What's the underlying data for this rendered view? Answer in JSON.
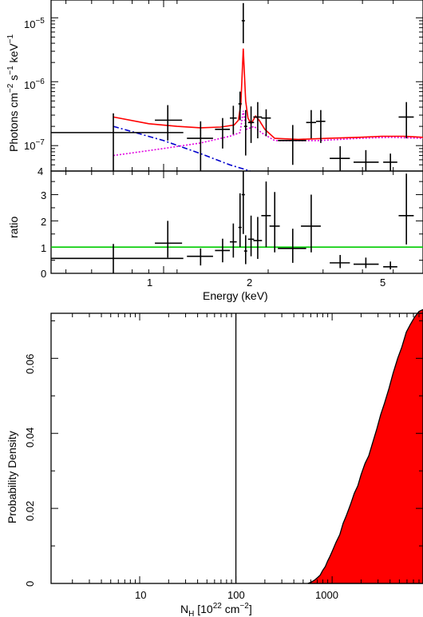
{
  "panels": {
    "spectrum": {
      "ylabel_main": "Photons cm",
      "ylabel_exp1": "−2",
      "ylabel_mid": " s",
      "ylabel_exp2": "−1",
      "ylabel_end": " keV",
      "ylabel_exp3": "−1",
      "yticks": [
        {
          "base": "10",
          "exp": "−5",
          "value": 1e-05
        },
        {
          "base": "10",
          "exp": "−6",
          "value": 1e-06
        },
        {
          "base": "10",
          "exp": "−7",
          "value": 1e-07
        }
      ],
      "ymin_label": "4"
    },
    "ratio": {
      "ylabel": "ratio",
      "yticks": [
        "0",
        "1",
        "2",
        "3"
      ],
      "xticks": [
        "1",
        "2",
        "5"
      ],
      "xlabel": "Energy (keV)"
    },
    "posterior": {
      "ylabel": "Probability Density",
      "yticks": [
        "0",
        "0.02",
        "0.04",
        "0.06"
      ],
      "xticks": [
        "10",
        "100",
        "1000"
      ],
      "xlabel_base": "N",
      "xlabel_sub": "H",
      "xlabel_rest": " [10",
      "xlabel_exp": "22",
      "xlabel_unit": " cm",
      "xlabel_exp2": "−2",
      "xlabel_close": "]"
    }
  },
  "colors": {
    "model_total": "#ff0000",
    "component_blue": "#0000cc",
    "component_magenta": "#e000e0",
    "unity_line": "#00cc00",
    "posterior_fill": "#ff0000",
    "axes": "#000000"
  },
  "chart_data": [
    {
      "type": "scatter",
      "description_panel": "spectrum",
      "xscale": "log",
      "yscale": "log",
      "xlim": [
        0.45,
        6.3
      ],
      "ylim": [
        4e-08,
        1.9e-05
      ],
      "series": [
        {
          "kind": "data",
          "points": [
            {
              "x": 0.7,
              "y": 1.6e-07,
              "xerr": [
                0.25,
                0.45
              ],
              "yerr": [
                1.6e-07,
                1.6e-07
              ]
            },
            {
              "x": 1.03,
              "y": 2.5e-07,
              "xerr": [
                0.09,
                0.11
              ],
              "yerr": [
                1.3e-07,
                1.8e-07
              ]
            },
            {
              "x": 1.3,
              "y": 1.3e-07,
              "xerr": [
                0.12,
                0.12
              ],
              "yerr": [
                9e-08,
                1.1e-07
              ]
            },
            {
              "x": 1.52,
              "y": 1.8e-07,
              "xerr": [
                0.08,
                0.08
              ],
              "yerr": [
                9e-08,
                9e-08
              ]
            },
            {
              "x": 1.64,
              "y": 2.7e-07,
              "xerr": [
                0.04,
                0.04
              ],
              "yerr": [
                1.2e-07,
                1.5e-07
              ]
            },
            {
              "x": 1.72,
              "y": 4.5e-07,
              "xerr": [
                0.02,
                0.02
              ],
              "yerr": [
                2e-07,
                2.5e-07
              ]
            },
            {
              "x": 1.76,
              "y": 9e-06,
              "xerr": [
                0.02,
                0.02
              ],
              "yerr": [
                5e-06,
                8e-06
              ]
            },
            {
              "x": 1.79,
              "y": 2e-07,
              "xerr": [
                0.02,
                0.02
              ],
              "yerr": [
                1.3e-07,
                1.6e-07
              ]
            },
            {
              "x": 1.86,
              "y": 2.3e-07,
              "xerr": [
                0.04,
                0.04
              ],
              "yerr": [
                1.2e-07,
                1.8e-07
              ]
            },
            {
              "x": 1.95,
              "y": 2.8e-07,
              "xerr": [
                0.06,
                0.06
              ],
              "yerr": [
                1.5e-07,
                2e-07
              ]
            },
            {
              "x": 2.07,
              "y": 2.7e-07,
              "xerr": [
                0.07,
                0.07
              ],
              "yerr": [
                1.3e-07,
                1e-07
              ]
            },
            {
              "x": 2.5,
              "y": 1.2e-07,
              "xerr": [
                0.25,
                0.25
              ],
              "yerr": [
                7e-08,
                9e-08
              ]
            },
            {
              "x": 2.85,
              "y": 2.3e-07,
              "xerr": [
                0.1,
                0.1
              ],
              "yerr": [
                1e-07,
                1.3e-07
              ]
            },
            {
              "x": 3.05,
              "y": 2.4e-07,
              "xerr": [
                0.1,
                0.1
              ],
              "yerr": [
                1.3e-07,
                1.2e-07
              ]
            },
            {
              "x": 3.5,
              "y": 6.3e-08,
              "xerr": [
                0.25,
                0.25
              ],
              "yerr": [
                2.3e-08,
                3.5e-08
              ]
            },
            {
              "x": 4.2,
              "y": 5.5e-08,
              "xerr": [
                0.35,
                0.4
              ],
              "yerr": [
                1.5e-08,
                3e-08
              ]
            },
            {
              "x": 5.0,
              "y": 5.5e-08,
              "xerr": [
                0.25,
                0.25
              ],
              "yerr": [
                1.5e-08,
                2e-08
              ]
            },
            {
              "x": 5.6,
              "y": 2.8e-07,
              "xerr": [
                0.3,
                0.3
              ],
              "yerr": [
                1.5e-07,
                2e-07
              ]
            }
          ]
        },
        {
          "kind": "model_total",
          "color": "#ff0000",
          "points": [
            [
              0.7,
              2.8e-07
            ],
            [
              0.9,
              2.2e-07
            ],
            [
              1.1,
              2e-07
            ],
            [
              1.3,
              1.9e-07
            ],
            [
              1.5,
              1.95e-07
            ],
            [
              1.65,
              2.1e-07
            ],
            [
              1.7,
              2.5e-07
            ],
            [
              1.73,
              4.5e-07
            ],
            [
              1.76,
              3.3e-06
            ],
            [
              1.79,
              5e-07
            ],
            [
              1.82,
              2.7e-07
            ],
            [
              1.86,
              2.2e-07
            ],
            [
              1.92,
              2.9e-07
            ],
            [
              1.97,
              2.5e-07
            ],
            [
              2.05,
              1.8e-07
            ],
            [
              2.2,
              1.3e-07
            ],
            [
              2.6,
              1.25e-07
            ],
            [
              3.2,
              1.3e-07
            ],
            [
              4.0,
              1.35e-07
            ],
            [
              4.7,
              1.4e-07
            ],
            [
              5.5,
              1.4e-07
            ],
            [
              6.3,
              1.35e-07
            ]
          ]
        },
        {
          "kind": "component_blue",
          "color": "#0000cc",
          "points": [
            [
              0.7,
              2e-07
            ],
            [
              1.0,
              1.2e-07
            ],
            [
              1.3,
              7.5e-08
            ],
            [
              1.6,
              5e-08
            ],
            [
              1.85,
              4e-08
            ]
          ]
        },
        {
          "kind": "component_magenta",
          "color": "#e000e0",
          "points": [
            [
              0.7,
              7e-08
            ],
            [
              1.0,
              9e-08
            ],
            [
              1.3,
              1.1e-07
            ],
            [
              1.6,
              1.4e-07
            ],
            [
              1.72,
              1.6e-07
            ],
            [
              1.76,
              3.5e-07
            ],
            [
              1.8,
              1.8e-07
            ],
            [
              1.9,
              2e-07
            ],
            [
              2.0,
              1.6e-07
            ],
            [
              2.2,
              1.2e-07
            ],
            [
              3.0,
              1.2e-07
            ],
            [
              4.0,
              1.3e-07
            ],
            [
              5.0,
              1.35e-07
            ],
            [
              6.3,
              1.3e-07
            ]
          ]
        }
      ]
    },
    {
      "type": "scatter",
      "description_panel": "ratio",
      "xscale": "log",
      "xlim": [
        0.45,
        6.3
      ],
      "ylim": [
        0,
        3.9
      ],
      "reference_line": 1,
      "points": [
        {
          "x": 0.7,
          "y": 0.57,
          "xerr": [
            0.25,
            0.45
          ],
          "yerr": [
            0.57,
            0.55
          ]
        },
        {
          "x": 1.03,
          "y": 1.15,
          "xerr": [
            0.09,
            0.11
          ],
          "yerr": [
            0.55,
            0.85
          ]
        },
        {
          "x": 1.3,
          "y": 0.65,
          "xerr": [
            0.12,
            0.12
          ],
          "yerr": [
            0.35,
            0.3
          ]
        },
        {
          "x": 1.52,
          "y": 0.87,
          "xerr": [
            0.08,
            0.08
          ],
          "yerr": [
            0.45,
            0.45
          ]
        },
        {
          "x": 1.64,
          "y": 1.2,
          "xerr": [
            0.04,
            0.04
          ],
          "yerr": [
            0.6,
            0.7
          ]
        },
        {
          "x": 1.72,
          "y": 1.75,
          "xerr": [
            0.02,
            0.02
          ],
          "yerr": [
            0.75,
            1.3
          ]
        },
        {
          "x": 1.76,
          "y": 3.0,
          "xerr": [
            0.02,
            0.02
          ],
          "yerr": [
            1.5,
            0.9
          ]
        },
        {
          "x": 1.79,
          "y": 0.85,
          "xerr": [
            0.02,
            0.02
          ],
          "yerr": [
            0.5,
            0.6
          ]
        },
        {
          "x": 1.86,
          "y": 1.3,
          "xerr": [
            0.04,
            0.04
          ],
          "yerr": [
            0.65,
            0.9
          ]
        },
        {
          "x": 1.95,
          "y": 1.25,
          "xerr": [
            0.06,
            0.06
          ],
          "yerr": [
            0.7,
            0.9
          ]
        },
        {
          "x": 2.07,
          "y": 2.2,
          "xerr": [
            0.07,
            0.07
          ],
          "yerr": [
            1.2,
            1.3
          ]
        },
        {
          "x": 2.2,
          "y": 1.8,
          "xerr": [
            0.08,
            0.08
          ],
          "yerr": [
            1.0,
            1.3
          ]
        },
        {
          "x": 2.5,
          "y": 0.95,
          "xerr": [
            0.25,
            0.25
          ],
          "yerr": [
            0.55,
            0.75
          ]
        },
        {
          "x": 2.85,
          "y": 1.8,
          "xerr": [
            0.2,
            0.2
          ],
          "yerr": [
            1.0,
            1.2
          ]
        },
        {
          "x": 3.5,
          "y": 0.4,
          "xerr": [
            0.25,
            0.25
          ],
          "yerr": [
            0.2,
            0.3
          ]
        },
        {
          "x": 4.2,
          "y": 0.35,
          "xerr": [
            0.35,
            0.4
          ],
          "yerr": [
            0.15,
            0.25
          ]
        },
        {
          "x": 5.0,
          "y": 0.25,
          "xerr": [
            0.25,
            0.25
          ],
          "yerr": [
            0.1,
            0.2
          ]
        },
        {
          "x": 5.6,
          "y": 2.2,
          "xerr": [
            0.3,
            0.3
          ],
          "yerr": [
            1.1,
            1.6
          ]
        }
      ]
    },
    {
      "type": "area",
      "description_panel": "posterior",
      "xscale": "log",
      "xlim": [
        1.2,
        8800
      ],
      "ylim": [
        0,
        0.072
      ],
      "vertical_line": 100,
      "points": [
        [
          560,
          0
        ],
        [
          600,
          0.0003
        ],
        [
          650,
          0.0008
        ],
        [
          700,
          0.0015
        ],
        [
          750,
          0.0022
        ],
        [
          800,
          0.0035
        ],
        [
          850,
          0.0045
        ],
        [
          900,
          0.006
        ],
        [
          950,
          0.0072
        ],
        [
          1000,
          0.0085
        ],
        [
          1100,
          0.011
        ],
        [
          1200,
          0.013
        ],
        [
          1300,
          0.016
        ],
        [
          1400,
          0.018
        ],
        [
          1550,
          0.021
        ],
        [
          1700,
          0.024
        ],
        [
          1850,
          0.026
        ],
        [
          2000,
          0.029
        ],
        [
          2200,
          0.032
        ],
        [
          2400,
          0.034
        ],
        [
          2600,
          0.037
        ],
        [
          2900,
          0.041
        ],
        [
          3200,
          0.045
        ],
        [
          3500,
          0.048
        ],
        [
          3900,
          0.052
        ],
        [
          4300,
          0.056
        ],
        [
          4800,
          0.06
        ],
        [
          5300,
          0.063
        ],
        [
          5900,
          0.067
        ],
        [
          6500,
          0.069
        ],
        [
          7200,
          0.071
        ],
        [
          8000,
          0.0725
        ],
        [
          8800,
          0.073
        ]
      ]
    }
  ]
}
